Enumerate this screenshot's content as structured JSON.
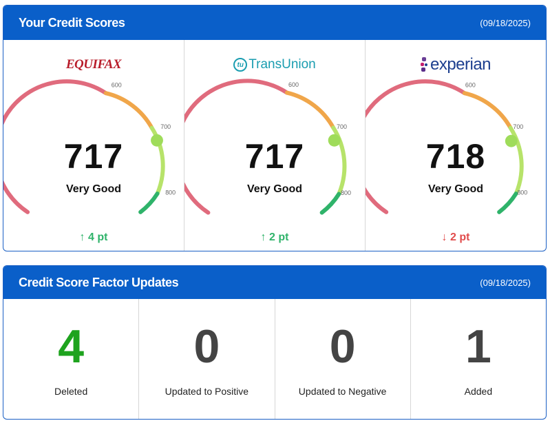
{
  "scores_panel": {
    "title": "Your Credit Scores",
    "date": "(09/18/2025)",
    "tick_labels": [
      "600",
      "700",
      "800"
    ],
    "bureaus": [
      {
        "name": "EQUIFAX",
        "score": "717",
        "score_value": 717,
        "rating": "Very Good",
        "change_dir": "up",
        "change_arrow": "↑",
        "change_text": "4 pt"
      },
      {
        "name": "TransUnion",
        "logo_mark": "tu",
        "score": "717",
        "score_value": 717,
        "rating": "Very Good",
        "change_dir": "up",
        "change_arrow": "↑",
        "change_text": "2 pt"
      },
      {
        "name": "experian",
        "score": "718",
        "score_value": 718,
        "rating": "Very Good",
        "change_dir": "down",
        "change_arrow": "↓",
        "change_text": "2 pt"
      }
    ],
    "gauge_colors": {
      "poor": "#e06b7d",
      "fair": "#f0a64a",
      "good": "#b7e36a",
      "excellent": "#2fb36a",
      "marker": "#9fdc5a"
    }
  },
  "factors_panel": {
    "title": "Credit Score Factor Updates",
    "date": "(09/18/2025)",
    "factors": [
      {
        "count": "4",
        "label": "Deleted",
        "color": "#1ea31e"
      },
      {
        "count": "0",
        "label": "Updated to Positive",
        "color": "#444444"
      },
      {
        "count": "0",
        "label": "Updated to Negative",
        "color": "#444444"
      },
      {
        "count": "1",
        "label": "Added",
        "color": "#444444"
      }
    ]
  }
}
